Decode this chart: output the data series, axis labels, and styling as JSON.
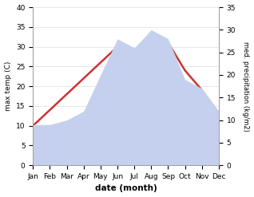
{
  "months": [
    "Jan",
    "Feb",
    "Mar",
    "Apr",
    "May",
    "Jun",
    "Jul",
    "Aug",
    "Sep",
    "Oct",
    "Nov",
    "Dec"
  ],
  "temperature": [
    10,
    14,
    18,
    22,
    26,
    30,
    29,
    31,
    31,
    24,
    19,
    13
  ],
  "precipitation": [
    9,
    9,
    10,
    12,
    20,
    28,
    26,
    30,
    28,
    19,
    17,
    12
  ],
  "temp_color": "#cc3333",
  "precip_color": "#c5d0ee",
  "temp_ylim": [
    0,
    40
  ],
  "precip_ylim": [
    0,
    35
  ],
  "xlabel": "date (month)",
  "ylabel_left": "max temp (C)",
  "ylabel_right": "med. precipitation (kg/m2)",
  "temp_linewidth": 1.8,
  "background_color": "#ffffff",
  "grid_color": "#dddddd",
  "tick_fontsize": 6.5,
  "label_fontsize": 7.5
}
